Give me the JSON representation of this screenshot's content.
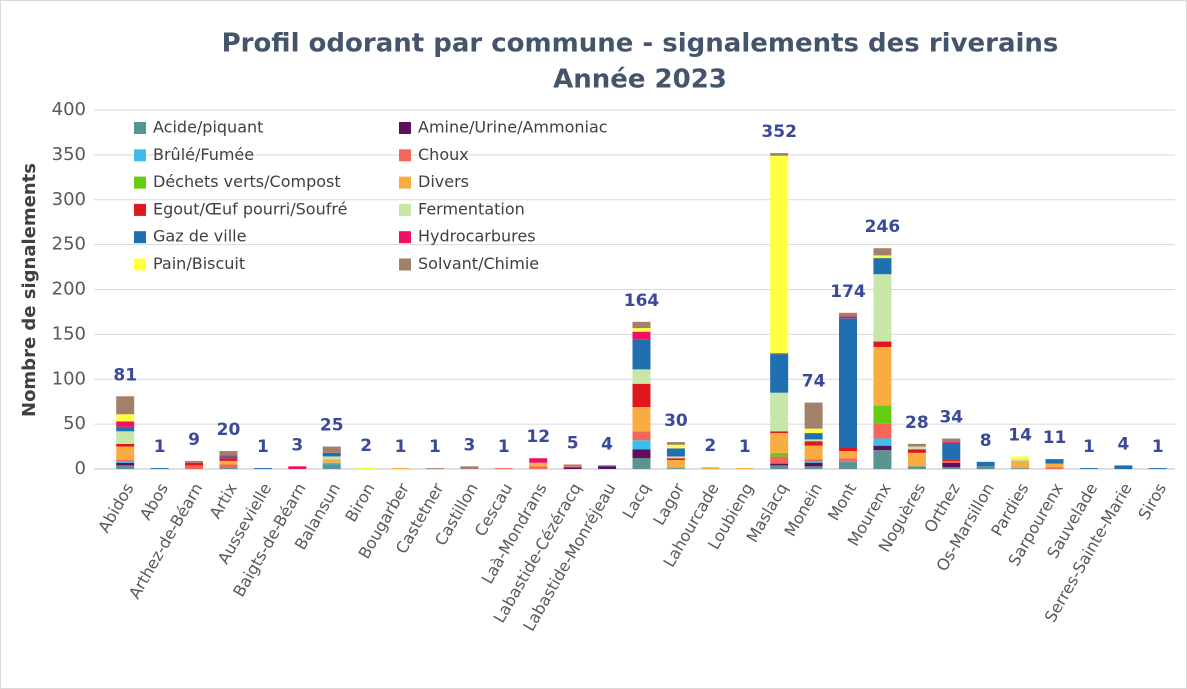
{
  "chart_data": {
    "type": "stacked_bar",
    "title": "Profil odorant par commune - signalements des riverains",
    "subtitle": "Année 2023",
    "ylabel": "Nombre de signalements",
    "categories": [
      "Abidos",
      "Abos",
      "Arthez-de-Béarn",
      "Artix",
      "Aussevielle",
      "Baigts-de-Béarn",
      "Balansun",
      "Biron",
      "Bougarber",
      "Castetner",
      "Castillon",
      "Cescau",
      "Laà-Mondrans",
      "Labastide-Cézéracq",
      "Labastide-Monréjeau",
      "Lacq",
      "Lagor",
      "Lahourcade",
      "Loubieng",
      "Maslacq",
      "Monein",
      "Mont",
      "Mourenx",
      "Noguères",
      "Orthez",
      "Os-Marsillon",
      "Pardies",
      "Sarpourenx",
      "Sauvelade",
      "Serres-Sainte-Marie",
      "Siros"
    ],
    "totals": [
      81,
      1,
      9,
      20,
      1,
      3,
      25,
      2,
      1,
      1,
      3,
      1,
      12,
      5,
      4,
      164,
      30,
      2,
      1,
      352,
      74,
      174,
      246,
      28,
      34,
      8,
      14,
      11,
      1,
      4,
      1
    ],
    "series": [
      {
        "name": "Acide/piquant",
        "color": "#5b9391",
        "values": [
          4,
          0,
          0,
          2,
          0,
          0,
          5,
          0,
          0,
          0,
          0,
          0,
          0,
          0,
          0,
          12,
          1,
          0,
          0,
          4,
          3,
          8,
          21,
          3,
          2,
          3,
          1,
          0,
          0,
          0,
          0
        ]
      },
      {
        "name": "Amine/Urine/Ammoniac",
        "color": "#5e0e5e",
        "values": [
          3,
          0,
          0,
          0,
          0,
          0,
          0,
          0,
          0,
          0,
          0,
          0,
          0,
          2,
          3,
          10,
          0,
          0,
          0,
          2,
          4,
          0,
          5,
          0,
          5,
          0,
          0,
          0,
          0,
          0,
          0
        ]
      },
      {
        "name": "Brûlé/Fumée",
        "color": "#3dbde9",
        "values": [
          1,
          0,
          0,
          0,
          0,
          0,
          2,
          0,
          0,
          0,
          0,
          0,
          0,
          0,
          0,
          10,
          1,
          0,
          0,
          0,
          1,
          0,
          8,
          0,
          0,
          0,
          0,
          0,
          0,
          0,
          0
        ]
      },
      {
        "name": "Choux",
        "color": "#f4665c",
        "values": [
          2,
          0,
          4,
          3,
          0,
          0,
          0,
          0,
          0,
          0,
          0,
          1,
          3,
          1,
          0,
          10,
          0,
          0,
          0,
          8,
          3,
          4,
          17,
          0,
          2,
          0,
          0,
          2,
          0,
          0,
          0
        ]
      },
      {
        "name": "Déchets verts/Compost",
        "color": "#66cc11",
        "values": [
          0,
          0,
          0,
          0,
          0,
          0,
          0,
          0,
          0,
          0,
          0,
          0,
          0,
          0,
          0,
          0,
          0,
          0,
          0,
          4,
          0,
          0,
          20,
          0,
          0,
          0,
          0,
          0,
          0,
          0,
          0
        ]
      },
      {
        "name": "Divers",
        "color": "#f9ad40",
        "values": [
          15,
          0,
          0,
          4,
          0,
          0,
          4,
          0,
          1,
          0,
          0,
          0,
          4,
          0,
          0,
          27,
          8,
          2,
          1,
          22,
          15,
          8,
          65,
          15,
          0,
          0,
          8,
          4,
          0,
          0,
          0
        ]
      },
      {
        "name": "Egout/Œuf pourri/Soufré",
        "color": "#e0171d",
        "values": [
          3,
          0,
          3,
          3,
          0,
          0,
          0,
          0,
          0,
          0,
          0,
          0,
          0,
          0,
          0,
          26,
          2,
          0,
          0,
          2,
          5,
          4,
          6,
          4,
          2,
          0,
          0,
          0,
          0,
          0,
          0
        ]
      },
      {
        "name": "Fermentation",
        "color": "#c7e6a8",
        "values": [
          14,
          0,
          0,
          0,
          0,
          0,
          3,
          0,
          0,
          0,
          0,
          0,
          0,
          0,
          0,
          16,
          2,
          0,
          0,
          43,
          2,
          0,
          75,
          3,
          0,
          0,
          2,
          0,
          0,
          0,
          0
        ]
      },
      {
        "name": "Gaz de ville",
        "color": "#1f6fb1",
        "values": [
          5,
          1,
          0,
          2,
          1,
          0,
          4,
          0,
          0,
          0,
          0,
          0,
          0,
          0,
          1,
          33,
          9,
          0,
          0,
          43,
          7,
          144,
          18,
          0,
          18,
          5,
          0,
          5,
          1,
          4,
          1
        ]
      },
      {
        "name": "Hydrocarbures",
        "color": "#ee1166",
        "values": [
          6,
          0,
          0,
          1,
          0,
          3,
          0,
          0,
          0,
          0,
          0,
          0,
          5,
          0,
          0,
          9,
          0,
          0,
          0,
          1,
          0,
          2,
          0,
          0,
          1,
          0,
          0,
          0,
          0,
          0,
          0
        ]
      },
      {
        "name": "Pain/Biscuit",
        "color": "#ffff44",
        "values": [
          8,
          0,
          0,
          0,
          0,
          0,
          0,
          2,
          0,
          0,
          0,
          0,
          0,
          0,
          0,
          4,
          4,
          0,
          0,
          220,
          5,
          0,
          3,
          0,
          0,
          0,
          3,
          0,
          0,
          0,
          0
        ]
      },
      {
        "name": "Solvant/Chimie",
        "color": "#a2806a",
        "values": [
          20,
          0,
          2,
          5,
          0,
          0,
          7,
          0,
          0,
          1,
          3,
          0,
          0,
          2,
          0,
          7,
          3,
          0,
          0,
          3,
          29,
          4,
          8,
          3,
          4,
          0,
          0,
          0,
          0,
          0,
          0
        ]
      }
    ],
    "ylim": [
      0,
      400
    ],
    "yticks": [
      0,
      50,
      100,
      150,
      200,
      250,
      300,
      350,
      400
    ],
    "grid": true
  }
}
